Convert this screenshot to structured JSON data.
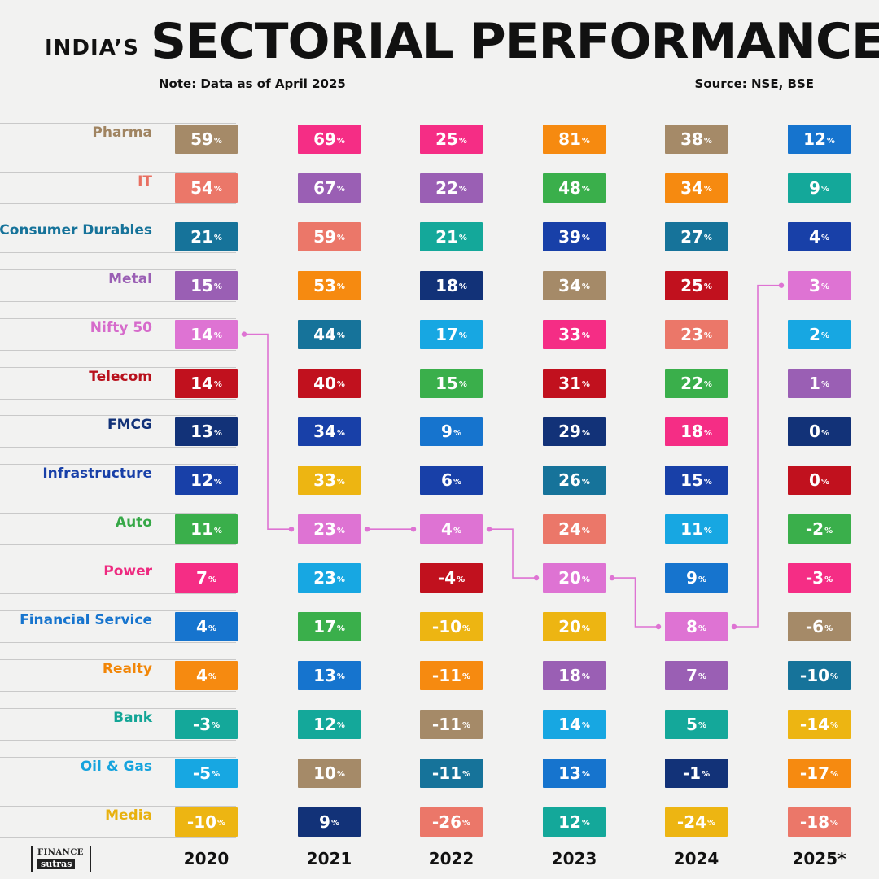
{
  "header": {
    "title_prefix": "INDIA’S",
    "title_main": "SECTORIAL PERFORMANCE",
    "note": "Note: Data as of April 2025",
    "source": "Source: NSE, BSE"
  },
  "logo": {
    "line1": "FINANCE",
    "line2": "sutras"
  },
  "colors": {
    "Pharma": "#A58A68",
    "IT": "#EB7769",
    "Consumer Durables": "#16739A",
    "Metal": "#9A5FB4",
    "Nifty 50": "#DE73D3",
    "Telecom": "#C1111E",
    "FMCG": "#123278",
    "Infrastructure": "#1840A8",
    "Auto": "#3AAF4B",
    "Power": "#F52D85",
    "Financial Service": "#1674CE",
    "Realty": "#F68A10",
    "Bank": "#14A89A",
    "Oil & Gas": "#17A7E2",
    "Media": "#EDB512"
  },
  "chart_data": {
    "type": "table",
    "title": "INDIA’S SECTORIAL PERFORMANCE",
    "highlight_series": "Nifty 50",
    "years": [
      {
        "label": "2020",
        "entries": [
          {
            "sector": "Pharma",
            "value": "59"
          },
          {
            "sector": "IT",
            "value": "54"
          },
          {
            "sector": "Consumer Durables",
            "value": "21"
          },
          {
            "sector": "Metal",
            "value": "15"
          },
          {
            "sector": "Nifty 50",
            "value": "14"
          },
          {
            "sector": "Telecom",
            "value": "14"
          },
          {
            "sector": "FMCG",
            "value": "13"
          },
          {
            "sector": "Infrastructure",
            "value": "12"
          },
          {
            "sector": "Auto",
            "value": "11"
          },
          {
            "sector": "Power",
            "value": "7"
          },
          {
            "sector": "Financial Service",
            "value": "4"
          },
          {
            "sector": "Realty",
            "value": "4"
          },
          {
            "sector": "Bank",
            "value": "-3"
          },
          {
            "sector": "Oil & Gas",
            "value": "-5"
          },
          {
            "sector": "Media",
            "value": "-10"
          }
        ]
      },
      {
        "label": "2021",
        "entries": [
          {
            "sector": "Power",
            "value": "69"
          },
          {
            "sector": "Metal",
            "value": "67"
          },
          {
            "sector": "IT",
            "value": "59"
          },
          {
            "sector": "Realty",
            "value": "53"
          },
          {
            "sector": "Consumer Durables",
            "value": "44"
          },
          {
            "sector": "Telecom",
            "value": "40"
          },
          {
            "sector": "Infrastructure",
            "value": "34"
          },
          {
            "sector": "Media",
            "value": "33"
          },
          {
            "sector": "Nifty 50",
            "value": "23"
          },
          {
            "sector": "Oil & Gas",
            "value": "23"
          },
          {
            "sector": "Auto",
            "value": "17"
          },
          {
            "sector": "Financial Service",
            "value": "13"
          },
          {
            "sector": "Bank",
            "value": "12"
          },
          {
            "sector": "Pharma",
            "value": "10"
          },
          {
            "sector": "FMCG",
            "value": "9"
          }
        ]
      },
      {
        "label": "2022",
        "entries": [
          {
            "sector": "Power",
            "value": "25"
          },
          {
            "sector": "Metal",
            "value": "22"
          },
          {
            "sector": "Bank",
            "value": "21"
          },
          {
            "sector": "FMCG",
            "value": "18"
          },
          {
            "sector": "Oil & Gas",
            "value": "17"
          },
          {
            "sector": "Auto",
            "value": "15"
          },
          {
            "sector": "Financial Service",
            "value": "9"
          },
          {
            "sector": "Infrastructure",
            "value": "6"
          },
          {
            "sector": "Nifty 50",
            "value": "4"
          },
          {
            "sector": "Telecom",
            "value": "-4"
          },
          {
            "sector": "Media",
            "value": "-10"
          },
          {
            "sector": "Realty",
            "value": "-11"
          },
          {
            "sector": "Pharma",
            "value": "-11"
          },
          {
            "sector": "Consumer Durables",
            "value": "-11"
          },
          {
            "sector": "IT",
            "value": "-26"
          }
        ]
      },
      {
        "label": "2023",
        "entries": [
          {
            "sector": "Realty",
            "value": "81"
          },
          {
            "sector": "Auto",
            "value": "48"
          },
          {
            "sector": "Infrastructure",
            "value": "39"
          },
          {
            "sector": "Pharma",
            "value": "34"
          },
          {
            "sector": "Power",
            "value": "33"
          },
          {
            "sector": "Telecom",
            "value": "31"
          },
          {
            "sector": "FMCG",
            "value": "29"
          },
          {
            "sector": "Consumer Durables",
            "value": "26"
          },
          {
            "sector": "IT",
            "value": "24"
          },
          {
            "sector": "Nifty 50",
            "value": "20"
          },
          {
            "sector": "Media",
            "value": "20"
          },
          {
            "sector": "Metal",
            "value": "18"
          },
          {
            "sector": "Oil & Gas",
            "value": "14"
          },
          {
            "sector": "Financial Service",
            "value": "13"
          },
          {
            "sector": "Bank",
            "value": "12"
          }
        ]
      },
      {
        "label": "2024",
        "entries": [
          {
            "sector": "Pharma",
            "value": "38"
          },
          {
            "sector": "Realty",
            "value": "34"
          },
          {
            "sector": "Consumer Durables",
            "value": "27"
          },
          {
            "sector": "Telecom",
            "value": "25"
          },
          {
            "sector": "IT",
            "value": "23"
          },
          {
            "sector": "Auto",
            "value": "22"
          },
          {
            "sector": "Power",
            "value": "18"
          },
          {
            "sector": "Infrastructure",
            "value": "15"
          },
          {
            "sector": "Oil & Gas",
            "value": "11"
          },
          {
            "sector": "Financial Service",
            "value": "9"
          },
          {
            "sector": "Nifty 50",
            "value": "8"
          },
          {
            "sector": "Metal",
            "value": "7"
          },
          {
            "sector": "Bank",
            "value": "5"
          },
          {
            "sector": "FMCG",
            "value": "-1"
          },
          {
            "sector": "Media",
            "value": "-24"
          }
        ]
      },
      {
        "label": "2025*",
        "entries": [
          {
            "sector": "Financial Service",
            "value": "12"
          },
          {
            "sector": "Bank",
            "value": "9"
          },
          {
            "sector": "Infrastructure",
            "value": "4"
          },
          {
            "sector": "Nifty 50",
            "value": "3"
          },
          {
            "sector": "Oil & Gas",
            "value": "2"
          },
          {
            "sector": "Metal",
            "value": "1"
          },
          {
            "sector": "FMCG",
            "value": "0"
          },
          {
            "sector": "Telecom",
            "value": "0"
          },
          {
            "sector": "Auto",
            "value": "-2"
          },
          {
            "sector": "Power",
            "value": "-3"
          },
          {
            "sector": "Pharma",
            "value": "-6"
          },
          {
            "sector": "Consumer Durables",
            "value": "-10"
          },
          {
            "sector": "Media",
            "value": "-14"
          },
          {
            "sector": "Realty",
            "value": "-17"
          },
          {
            "sector": "IT",
            "value": "-18"
          }
        ]
      }
    ]
  }
}
